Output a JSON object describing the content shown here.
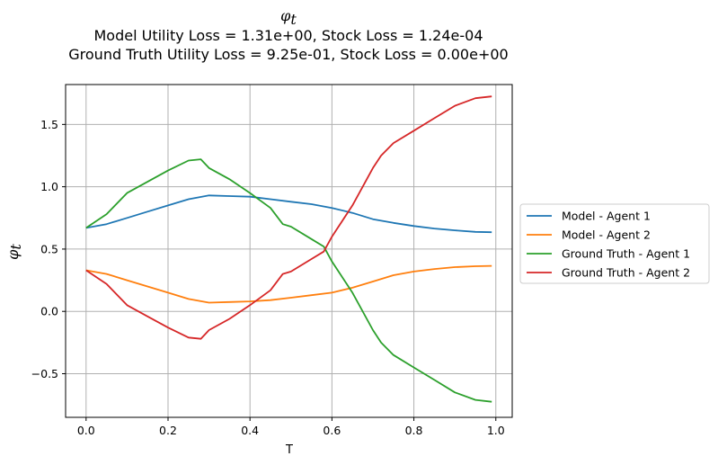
{
  "chart_data": {
    "type": "line",
    "title_lines": [
      "Model Utility Loss = 1.31e+00, Stock Loss = 1.24e-04",
      "Ground Truth Utility Loss = 9.25e-01, Stock Loss = 0.00e+00"
    ],
    "title_symbol": "φ",
    "title_subscript": "t",
    "xlabel": "T",
    "ylabel_symbol": "φ",
    "ylabel_subscript": "t",
    "xlim": [
      -0.05,
      1.04
    ],
    "ylim": [
      -0.85,
      1.82
    ],
    "xticks": [
      0.0,
      0.2,
      0.4,
      0.6,
      0.8,
      1.0
    ],
    "xtick_labels": [
      "0.0",
      "0.2",
      "0.4",
      "0.6",
      "0.8",
      "1.0"
    ],
    "yticks": [
      -0.5,
      0.0,
      0.5,
      1.0,
      1.5
    ],
    "ytick_labels": [
      "−0.5",
      "0.0",
      "0.5",
      "1.0",
      "1.5"
    ],
    "grid": true,
    "legend_position": "outside-right",
    "series": [
      {
        "name": "Model - Agent 1",
        "color": "#1f77b4",
        "x": [
          0.0,
          0.05,
          0.1,
          0.15,
          0.2,
          0.25,
          0.3,
          0.35,
          0.4,
          0.45,
          0.5,
          0.55,
          0.6,
          0.65,
          0.7,
          0.75,
          0.8,
          0.85,
          0.9,
          0.95,
          0.99
        ],
        "y": [
          0.67,
          0.7,
          0.75,
          0.8,
          0.85,
          0.9,
          0.93,
          0.925,
          0.92,
          0.9,
          0.88,
          0.86,
          0.83,
          0.79,
          0.74,
          0.71,
          0.685,
          0.665,
          0.65,
          0.638,
          0.635
        ]
      },
      {
        "name": "Model - Agent 2",
        "color": "#ff7f0e",
        "x": [
          0.0,
          0.05,
          0.1,
          0.15,
          0.2,
          0.25,
          0.3,
          0.35,
          0.4,
          0.45,
          0.5,
          0.55,
          0.6,
          0.65,
          0.7,
          0.75,
          0.8,
          0.85,
          0.9,
          0.95,
          0.99
        ],
        "y": [
          0.33,
          0.3,
          0.25,
          0.2,
          0.15,
          0.1,
          0.07,
          0.075,
          0.08,
          0.09,
          0.11,
          0.13,
          0.15,
          0.19,
          0.24,
          0.29,
          0.32,
          0.34,
          0.355,
          0.362,
          0.365
        ]
      },
      {
        "name": "Ground Truth - Agent 1",
        "color": "#2ca02c",
        "x": [
          0.0,
          0.05,
          0.1,
          0.15,
          0.2,
          0.25,
          0.28,
          0.3,
          0.35,
          0.4,
          0.45,
          0.48,
          0.5,
          0.55,
          0.58,
          0.6,
          0.65,
          0.7,
          0.72,
          0.75,
          0.8,
          0.85,
          0.9,
          0.95,
          0.99
        ],
        "y": [
          0.67,
          0.78,
          0.95,
          1.04,
          1.13,
          1.21,
          1.22,
          1.15,
          1.06,
          0.95,
          0.83,
          0.7,
          0.68,
          0.58,
          0.52,
          0.4,
          0.15,
          -0.15,
          -0.25,
          -0.35,
          -0.45,
          -0.55,
          -0.65,
          -0.71,
          -0.725
        ]
      },
      {
        "name": "Ground Truth - Agent 2",
        "color": "#d62728",
        "x": [
          0.0,
          0.05,
          0.1,
          0.15,
          0.2,
          0.25,
          0.28,
          0.3,
          0.35,
          0.4,
          0.45,
          0.48,
          0.5,
          0.55,
          0.58,
          0.6,
          0.65,
          0.7,
          0.72,
          0.75,
          0.8,
          0.85,
          0.9,
          0.95,
          0.99
        ],
        "y": [
          0.33,
          0.22,
          0.05,
          -0.04,
          -0.13,
          -0.21,
          -0.22,
          -0.15,
          -0.06,
          0.05,
          0.17,
          0.3,
          0.32,
          0.42,
          0.48,
          0.6,
          0.85,
          1.15,
          1.25,
          1.35,
          1.45,
          1.55,
          1.65,
          1.71,
          1.725
        ]
      }
    ]
  }
}
